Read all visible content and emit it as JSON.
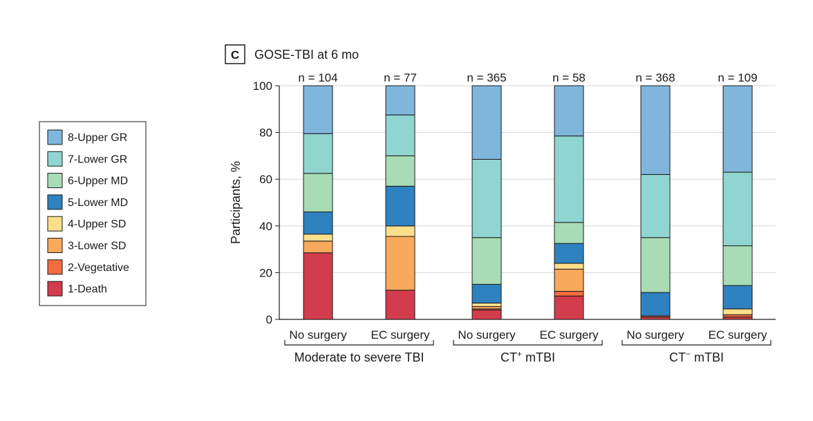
{
  "chart_data": {
    "type": "bar",
    "stacked": true,
    "panel_letter": "C",
    "title": "GOSE-TBI at 6 mo",
    "ylabel": "Participants, %",
    "ylim": [
      0,
      100
    ],
    "yticks": [
      0,
      20,
      40,
      60,
      80,
      100
    ],
    "grid": true,
    "legend_position": "left",
    "categories": [
      "No surgery",
      "EC surgery",
      "No surgery",
      "EC surgery",
      "No surgery",
      "EC surgery"
    ],
    "n_labels": [
      "n = 104",
      "n = 77",
      "n = 365",
      "n = 58",
      "n = 368",
      "n = 109"
    ],
    "groups": [
      {
        "label": "Moderate to severe TBI",
        "base": "",
        "sup": "",
        "bars": [
          0,
          1
        ]
      },
      {
        "label": "",
        "base": "CT",
        "sup": "+",
        "rest": " mTBI",
        "bars": [
          2,
          3
        ]
      },
      {
        "label": "",
        "base": "CT",
        "sup": "−",
        "rest": " mTBI",
        "bars": [
          4,
          5
        ]
      }
    ],
    "series": [
      {
        "name": "1-Death",
        "color": "#d33c4d",
        "values": [
          28.5,
          12.5,
          4.0,
          10.0,
          1.0,
          1.0
        ]
      },
      {
        "name": "2-Vegetative",
        "color": "#f26c40",
        "values": [
          0.0,
          0.0,
          0.5,
          2.0,
          0.5,
          1.0
        ]
      },
      {
        "name": "3-Lower SD",
        "color": "#f8a95c",
        "values": [
          5.0,
          23.0,
          1.0,
          9.5,
          0.0,
          0.0
        ]
      },
      {
        "name": "4-Upper SD",
        "color": "#fddf8b",
        "values": [
          3.0,
          4.5,
          1.5,
          2.5,
          0.0,
          2.5
        ]
      },
      {
        "name": "5-Lower MD",
        "color": "#2f82c0",
        "values": [
          9.5,
          17.0,
          8.0,
          8.5,
          10.0,
          10.0
        ]
      },
      {
        "name": "6-Upper MD",
        "color": "#a9dcb5",
        "values": [
          16.5,
          13.0,
          20.0,
          9.0,
          23.5,
          17.0
        ]
      },
      {
        "name": "7-Lower GR",
        "color": "#90d5cf",
        "values": [
          17.0,
          17.5,
          33.5,
          37.0,
          27.0,
          31.5
        ]
      },
      {
        "name": "8-Upper GR",
        "color": "#80b6dc",
        "values": [
          20.5,
          12.5,
          31.5,
          21.5,
          38.0,
          37.0
        ]
      }
    ]
  }
}
